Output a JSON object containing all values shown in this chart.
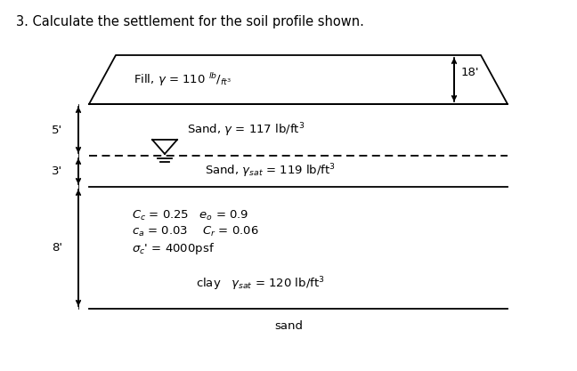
{
  "title": "3. Calculate the settlement for the soil profile shown.",
  "title_fontsize": 10.5,
  "background_color": "#ffffff",
  "fill_label": "Fill, $\\gamma$ = 110 $^{lb}/_{ft^3}$",
  "sand1_label": "Sand, $\\gamma$ = 117 lb/ft$^3$",
  "sand2_label": "Sand, $\\gamma_{sat}$ = 119 lb/ft$^3$",
  "clay_label1": "$C_c$ = 0.25   $e_o$ = 0.9",
  "clay_label2": "$c_a$ = 0.03    $C_r$ = 0.06",
  "clay_label3": "$\\sigma_c$' = 4000psf",
  "clay_label4": "clay   $\\gamma_{sat}$ = 120 lb/ft$^3$",
  "sand_bottom_label": "sand",
  "dim_18": "18'",
  "dim_5": "5'",
  "dim_3": "3'",
  "dim_8": "8'",
  "line_color": "#000000",
  "font_size": 9.5,
  "fig_width": 6.48,
  "fig_height": 4.17,
  "dpi": 100
}
